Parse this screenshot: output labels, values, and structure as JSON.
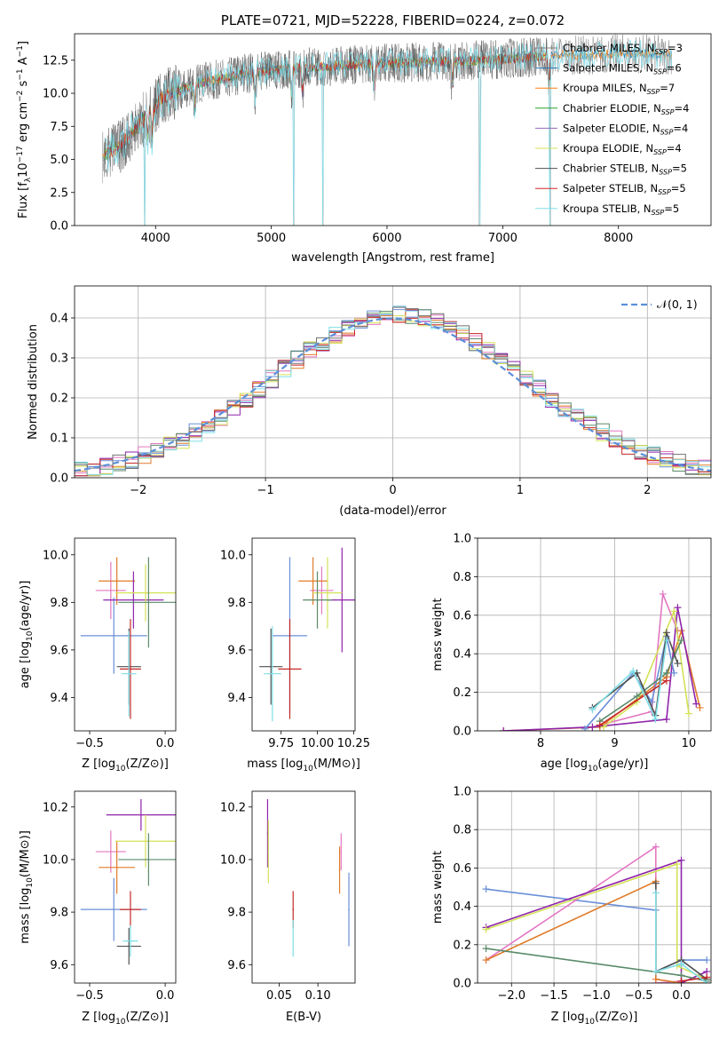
{
  "colors": {
    "Chabrier MILES": "#808080",
    "Salpeter MILES": "#1f77b4",
    "Kroupa MILES": "#ff7f0e",
    "Chabrier ELODIE": "#2ca02c",
    "Salpeter ELODIE": "#9467bd",
    "Kroupa ELODIE": "#d4e157",
    "Chabrier STELIB": "#505050",
    "Salpeter STELIB": "#d62728",
    "Kroupa STELIB": "#80deea",
    "cornflower": "#6a8fd8",
    "pink": "#e377c2",
    "orange": "#e07b28",
    "green": "#5a8a6a",
    "purple": "#8e24aa",
    "lime": "#d4e157",
    "red": "#c62828",
    "cyan": "#7fdfe6",
    "gray": "#707070"
  },
  "chart_data": [
    {
      "id": "spectrum",
      "type": "line",
      "title": "PLATE=0721, MJD=52228, FIBERID=0224, z=0.072",
      "xlabel": "wavelength [Angstrom, rest frame]",
      "ylabel": "Flux [f_λ 10^-17 erg cm^-2 s^-1 A^-1]",
      "xlim": [
        3300,
        8800
      ],
      "ylim": [
        0,
        14.5
      ],
      "xticks": [
        4000,
        5000,
        6000,
        7000,
        8000
      ],
      "xtick_labels": [
        "4000",
        "5000",
        "6000",
        "7000",
        "8000"
      ],
      "yticks": [
        0,
        2.5,
        5,
        7.5,
        10,
        12.5
      ],
      "ytick_labels": [
        "0.0",
        "2.5",
        "5.0",
        "7.5",
        "10.0",
        "12.5"
      ],
      "legend_position": "right",
      "legend": [
        {
          "label": "Chabrier MILES, N_SSP=3",
          "color": "#808080"
        },
        {
          "label": "Salpeter MILES, N_SSP=6",
          "color": "#1f77b4"
        },
        {
          "label": "Kroupa MILES, N_SSP=7",
          "color": "#ff7f0e"
        },
        {
          "label": "Chabrier ELODIE, N_SSP=4",
          "color": "#2ca02c"
        },
        {
          "label": "Salpeter ELODIE, N_SSP=4",
          "color": "#9467bd"
        },
        {
          "label": "Kroupa ELODIE, N_SSP=4",
          "color": "#d4e157"
        },
        {
          "label": "Chabrier STELIB, N_SSP=5",
          "color": "#505050"
        },
        {
          "label": "Salpeter STELIB, N_SSP=5",
          "color": "#d62728"
        },
        {
          "label": "Kroupa STELIB, N_SSP=5",
          "color": "#80deea"
        }
      ],
      "continuum": {
        "x": [
          3550,
          3700,
          3850,
          3950,
          4050,
          4200,
          4400,
          4600,
          4800,
          5000,
          5200,
          5400,
          5600,
          5800,
          6000,
          6200,
          6400,
          6600,
          6800,
          7000,
          7200,
          7400,
          7600,
          7800,
          8000,
          8200,
          8400
        ],
        "y": [
          5.3,
          6.0,
          7.6,
          8.6,
          9.6,
          10.2,
          10.8,
          11.2,
          11.5,
          11.7,
          11.9,
          12.0,
          12.1,
          12.2,
          12.3,
          12.3,
          12.4,
          12.4,
          12.5,
          12.6,
          12.7,
          12.8,
          12.9,
          12.9,
          13.0,
          13.0,
          12.9
        ]
      }
    },
    {
      "id": "residuals",
      "type": "line",
      "xlabel": "(data-model)/error",
      "ylabel": "Normed distribution",
      "xlim": [
        -2.5,
        2.5
      ],
      "ylim": [
        0,
        0.48
      ],
      "xticks": [
        -2,
        -1,
        0,
        1,
        2
      ],
      "xtick_labels": [
        "−2",
        "−1",
        "0",
        "1",
        "2"
      ],
      "yticks": [
        0,
        0.1,
        0.2,
        0.3,
        0.4
      ],
      "ytick_labels": [
        "0.0",
        "0.1",
        "0.2",
        "0.3",
        "0.4"
      ],
      "grid": true,
      "legend_position": "top-right",
      "legend": [
        {
          "label": "𝒩(0, 1)",
          "color": "#5b8fd8",
          "style": "dashed"
        }
      ],
      "model_curve": "N(0,1)",
      "bin_width": 0.1
    },
    {
      "id": "age-vs-Z",
      "type": "scatter",
      "xlabel": "Z [log10(Z/Z⊙)]",
      "ylabel": "age  [log10(age/yr)]",
      "xlim": [
        -0.6,
        0.07
      ],
      "ylim": [
        9.26,
        10.07
      ],
      "xticks": [
        -0.5,
        0.0
      ],
      "xtick_labels": [
        "−0.5",
        "0.0"
      ],
      "yticks": [
        9.4,
        9.6,
        9.8,
        10.0
      ],
      "ytick_labels": [
        "9.4",
        "9.6",
        "9.8",
        "10.0"
      ],
      "points": [
        {
          "x": -0.34,
          "y": 9.66,
          "xerr": 0.22,
          "yerr": 0.16,
          "color": "#6a8fd8"
        },
        {
          "x": -0.36,
          "y": 9.85,
          "xerr": 0.1,
          "yerr": 0.12,
          "color": "#e377c2"
        },
        {
          "x": -0.32,
          "y": 9.89,
          "xerr": 0.12,
          "yerr": 0.1,
          "color": "#e07b28"
        },
        {
          "x": -0.21,
          "y": 9.81,
          "xerr": 0.2,
          "yerr": 0.12,
          "color": "#8e24aa"
        },
        {
          "x": -0.13,
          "y": 9.84,
          "xerr": 0.2,
          "yerr": 0.12,
          "color": "#d4e157"
        },
        {
          "x": -0.11,
          "y": 9.8,
          "xerr": 0.2,
          "yerr": 0.19,
          "color": "#5a8a6a"
        },
        {
          "x": -0.24,
          "y": 9.53,
          "xerr": 0.08,
          "yerr": 0.16,
          "color": "#505050"
        },
        {
          "x": -0.23,
          "y": 9.52,
          "xerr": 0.07,
          "yerr": 0.21,
          "color": "#c62828"
        },
        {
          "x": -0.24,
          "y": 9.5,
          "xerr": 0.05,
          "yerr": 0.18,
          "color": "#7fdfe6"
        }
      ]
    },
    {
      "id": "age-vs-mass",
      "type": "scatter",
      "xlabel": "mass [log10(M/M⊙)]",
      "ylabel": "",
      "xlim": [
        9.55,
        10.26
      ],
      "ylim": [
        9.26,
        10.07
      ],
      "xticks": [
        9.75,
        10.0,
        10.25
      ],
      "xtick_labels": [
        "9.75",
        "10.00",
        "10.25"
      ],
      "yticks": [
        9.4,
        9.6,
        9.8,
        10.0
      ],
      "ytick_labels": [
        "9.4",
        "9.6",
        "9.8",
        "10.0"
      ],
      "points": [
        {
          "x": 9.81,
          "y": 9.66,
          "xerr": 0.12,
          "yerr": 0.33,
          "color": "#6a8fd8"
        },
        {
          "x": 10.03,
          "y": 9.85,
          "xerr": 0.08,
          "yerr": 0.1,
          "color": "#e377c2"
        },
        {
          "x": 9.97,
          "y": 9.89,
          "xerr": 0.1,
          "yerr": 0.1,
          "color": "#e07b28"
        },
        {
          "x": 10.17,
          "y": 9.81,
          "xerr": 0.1,
          "yerr": 0.22,
          "color": "#8e24aa"
        },
        {
          "x": 10.07,
          "y": 9.84,
          "xerr": 0.1,
          "yerr": 0.15,
          "color": "#d4e157"
        },
        {
          "x": 10.0,
          "y": 9.81,
          "xerr": 0.1,
          "yerr": 0.12,
          "color": "#5a8a6a"
        },
        {
          "x": 9.68,
          "y": 9.53,
          "xerr": 0.08,
          "yerr": 0.16,
          "color": "#505050"
        },
        {
          "x": 9.81,
          "y": 9.52,
          "xerr": 0.08,
          "yerr": 0.21,
          "color": "#c62828"
        },
        {
          "x": 9.69,
          "y": 9.5,
          "xerr": 0.06,
          "yerr": 0.2,
          "color": "#7fdfe6"
        }
      ]
    },
    {
      "id": "massweight-vs-age",
      "type": "line",
      "xlabel": "age  [log10(age/yr)]",
      "ylabel": "mass weight",
      "xlim": [
        7.15,
        10.3
      ],
      "ylim": [
        0,
        1
      ],
      "xticks": [
        8,
        9,
        10
      ],
      "xtick_labels": [
        "8",
        "9",
        "10"
      ],
      "yticks": [
        0,
        0.2,
        0.4,
        0.6,
        0.8,
        1.0
      ],
      "ytick_labels": [
        "0.0",
        "0.2",
        "0.4",
        "0.6",
        "0.8",
        "1.0"
      ],
      "grid": true,
      "series": [
        {
          "color": "#e377c2",
          "x": [
            8.7,
            9.5,
            9.65,
            9.85
          ],
          "y": [
            0.02,
            0.1,
            0.71,
            0.52
          ]
        },
        {
          "color": "#e07b28",
          "x": [
            7.5,
            8.8,
            9.7,
            9.9,
            10.15
          ],
          "y": [
            0.0,
            0.02,
            0.28,
            0.52,
            0.12
          ]
        },
        {
          "color": "#8e24aa",
          "x": [
            7.5,
            8.7,
            9.7,
            9.85,
            10.1
          ],
          "y": [
            0.0,
            0.02,
            0.06,
            0.64,
            0.14
          ]
        },
        {
          "color": "#d4e157",
          "x": [
            8.85,
            9.3,
            9.8,
            10.0
          ],
          "y": [
            0.02,
            0.15,
            0.62,
            0.09
          ]
        },
        {
          "color": "#6a8fd8",
          "x": [
            8.6,
            9.25,
            9.5,
            9.7,
            9.8
          ],
          "y": [
            0.01,
            0.3,
            0.15,
            0.49,
            0.3
          ]
        },
        {
          "color": "#5a8a6a",
          "x": [
            8.8,
            9.3,
            9.7,
            9.9
          ],
          "y": [
            0.05,
            0.18,
            0.3,
            0.47
          ]
        },
        {
          "color": "#505050",
          "x": [
            8.7,
            9.3,
            9.55,
            9.7,
            9.85
          ],
          "y": [
            0.12,
            0.3,
            0.08,
            0.51,
            0.35
          ]
        },
        {
          "color": "#c62828",
          "x": [
            8.8,
            9.7
          ],
          "y": [
            0.03,
            0.26
          ]
        },
        {
          "color": "#7fdfe6",
          "x": [
            8.7,
            9.25,
            9.55,
            9.7
          ],
          "y": [
            0.11,
            0.31,
            0.06,
            0.47
          ]
        }
      ]
    },
    {
      "id": "mass-vs-Z",
      "type": "scatter",
      "xlabel": "Z [log10(Z/Z⊙)]",
      "ylabel": "mass [log10(M/M⊙)]",
      "xlim": [
        -0.6,
        0.07
      ],
      "ylim": [
        9.53,
        10.26
      ],
      "xticks": [
        -0.5,
        0.0
      ],
      "xtick_labels": [
        "−0.5",
        "0.0"
      ],
      "yticks": [
        9.6,
        9.8,
        10.0,
        10.2
      ],
      "ytick_labels": [
        "9.6",
        "9.8",
        "10.0",
        "10.2"
      ],
      "points": [
        {
          "x": -0.34,
          "y": 9.81,
          "xerr": 0.22,
          "yerr": 0.12,
          "color": "#6a8fd8"
        },
        {
          "x": -0.36,
          "y": 10.03,
          "xerr": 0.1,
          "yerr": 0.08,
          "color": "#e377c2"
        },
        {
          "x": -0.32,
          "y": 9.97,
          "xerr": 0.12,
          "yerr": 0.1,
          "color": "#e07b28"
        },
        {
          "x": -0.16,
          "y": 10.17,
          "xerr": 0.23,
          "yerr": 0.06,
          "color": "#8e24aa"
        },
        {
          "x": -0.13,
          "y": 10.07,
          "xerr": 0.2,
          "yerr": 0.1,
          "color": "#d4e157"
        },
        {
          "x": -0.11,
          "y": 10.0,
          "xerr": 0.2,
          "yerr": 0.1,
          "color": "#5a8a6a"
        },
        {
          "x": -0.24,
          "y": 9.67,
          "xerr": 0.08,
          "yerr": 0.07,
          "color": "#505050"
        },
        {
          "x": -0.23,
          "y": 9.81,
          "xerr": 0.07,
          "yerr": 0.07,
          "color": "#c62828"
        },
        {
          "x": -0.23,
          "y": 9.69,
          "xerr": 0.05,
          "yerr": 0.06,
          "color": "#7fdfe6"
        }
      ]
    },
    {
      "id": "mass-vs-EBV",
      "type": "scatter",
      "xlabel": "E(B-V)",
      "ylabel": "",
      "xlim": [
        0.015,
        0.148
      ],
      "ylim": [
        9.53,
        10.26
      ],
      "xticks": [
        0.05,
        0.1
      ],
      "xtick_labels": [
        "0.05",
        "0.10"
      ],
      "yticks": [
        9.6,
        9.8,
        10.0,
        10.2
      ],
      "ytick_labels": [
        "9.6",
        "9.8",
        "10.0",
        "10.2"
      ],
      "points": [
        {
          "x": 0.035,
          "y": 10.1,
          "yerr": 0.13,
          "color": "#8e24aa"
        },
        {
          "x": 0.036,
          "y": 10.03,
          "yerr": 0.12,
          "color": "#d4e157"
        },
        {
          "x": 0.068,
          "y": 9.81,
          "yerr": 0.07,
          "color": "#c62828"
        },
        {
          "x": 0.068,
          "y": 9.7,
          "yerr": 0.07,
          "color": "#7fdfe6"
        },
        {
          "x": 0.128,
          "y": 9.96,
          "yerr": 0.09,
          "color": "#e07b28"
        },
        {
          "x": 0.13,
          "y": 10.03,
          "yerr": 0.07,
          "color": "#e377c2"
        },
        {
          "x": 0.14,
          "y": 9.81,
          "yerr": 0.14,
          "color": "#6a8fd8"
        }
      ]
    },
    {
      "id": "massweight-vs-Z",
      "type": "line",
      "xlabel": "Z [log10(Z/Z⊙)]",
      "ylabel": "mass weight",
      "xlim": [
        -2.4,
        0.35
      ],
      "ylim": [
        0,
        1
      ],
      "xticks": [
        -2.0,
        -1.5,
        -1.0,
        -0.5,
        0.0
      ],
      "xtick_labels": [
        "−2.0",
        "−1.5",
        "−1.0",
        "−0.5",
        "0.0"
      ],
      "yticks": [
        0,
        0.2,
        0.4,
        0.6,
        0.8,
        1.0
      ],
      "ytick_labels": [
        "0.0",
        "0.2",
        "0.4",
        "0.6",
        "0.8",
        "1.0"
      ],
      "grid": true,
      "series": [
        {
          "color": "#6a8fd8",
          "x": [
            -2.3,
            -0.3,
            -0.3,
            0.0,
            0.3
          ],
          "y": [
            0.49,
            0.38,
            0.06,
            0.12,
            0.12
          ]
        },
        {
          "color": "#e377c2",
          "x": [
            -2.3,
            -0.3,
            -0.3,
            0.0
          ],
          "y": [
            0.12,
            0.71,
            0.0,
            0.01
          ]
        },
        {
          "color": "#e07b28",
          "x": [
            -2.3,
            -0.3,
            -0.3,
            0.0,
            0.3
          ],
          "y": [
            0.12,
            0.53,
            0.02,
            0.0,
            0.0
          ]
        },
        {
          "color": "#8e24aa",
          "x": [
            -2.3,
            0.0,
            0.0,
            0.3
          ],
          "y": [
            0.29,
            0.64,
            0.0,
            0.06
          ]
        },
        {
          "color": "#d4e157",
          "x": [
            -2.3,
            -0.05,
            -0.05,
            0.3
          ],
          "y": [
            0.28,
            0.62,
            0.09,
            0.02
          ]
        },
        {
          "color": "#5a8a6a",
          "x": [
            -2.3,
            0.0,
            0.3
          ],
          "y": [
            0.18,
            0.04,
            0.01
          ]
        },
        {
          "color": "#505050",
          "x": [
            -0.3,
            -0.3,
            0.0,
            0.3
          ],
          "y": [
            0.52,
            0.06,
            0.12,
            0.02
          ]
        },
        {
          "color": "#c62828",
          "x": [
            0.0,
            0.3
          ],
          "y": [
            0.01,
            0.03
          ]
        },
        {
          "color": "#7fdfe6",
          "x": [
            -0.3,
            -0.3,
            0.0,
            0.3
          ],
          "y": [
            0.47,
            0.06,
            0.1,
            0.0
          ]
        }
      ]
    }
  ]
}
